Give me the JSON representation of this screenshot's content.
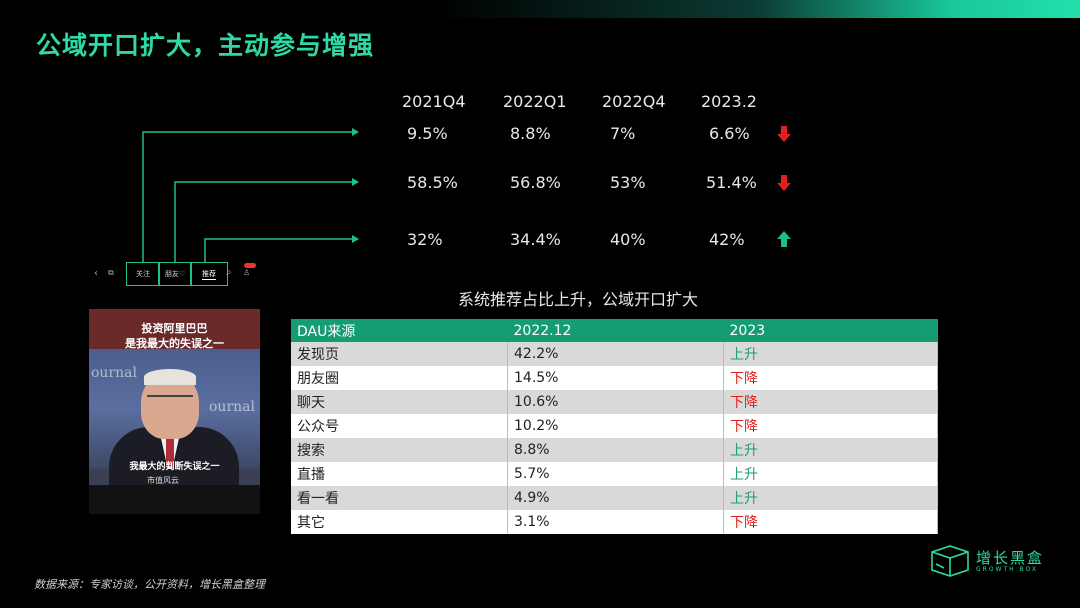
{
  "title": "公域开口扩大，主动参与增强",
  "quarters": [
    "2021Q4",
    "2022Q1",
    "2022Q4",
    "2023.2"
  ],
  "rows": [
    {
      "values": [
        "9.5%",
        "8.8%",
        "7%",
        "6.6%"
      ],
      "trend": "down",
      "trend_color": "#e02020"
    },
    {
      "values": [
        "58.5%",
        "56.8%",
        "53%",
        "51.4%"
      ],
      "trend": "down",
      "trend_color": "#e02020"
    },
    {
      "values": [
        "32%",
        "34.4%",
        "40%",
        "42%"
      ],
      "trend": "up",
      "trend_color": "#1fbf7e"
    }
  ],
  "tabs": {
    "follow": "关注",
    "friends": "朋友♡",
    "recommend": "推荐"
  },
  "subtitle": "系统推荐占比上升，公域开口扩大",
  "table": {
    "headers": [
      "DAU来源",
      "2022.12",
      "2023"
    ],
    "rows": [
      [
        "发现页",
        "42.2%",
        "上升"
      ],
      [
        "朋友圈",
        "14.5%",
        "下降"
      ],
      [
        "聊天",
        "10.6%",
        "下降"
      ],
      [
        "公众号",
        "10.2%",
        "下降"
      ],
      [
        "搜索",
        "8.8%",
        "上升"
      ],
      [
        "直播",
        "5.7%",
        "上升"
      ],
      [
        "看一看",
        "4.9%",
        "上升"
      ],
      [
        "其它",
        "3.1%",
        "下降"
      ]
    ]
  },
  "video": {
    "headline_1": "投资阿里巴巴",
    "headline_2": "是我最大的失误之一",
    "caption": "我最大的判断失误之一",
    "byline": "市值风云",
    "bg_text": "ournal"
  },
  "source": "数据来源：专家访谈，公开资料，增长黑盒整理",
  "logo": {
    "name": "增长黑盒",
    "tagline": "GROWTH BOX"
  },
  "colors": {
    "accent": "#2fd9a6",
    "header_green": "#169c72",
    "up": "#1f9e6e",
    "down": "#e02020"
  }
}
